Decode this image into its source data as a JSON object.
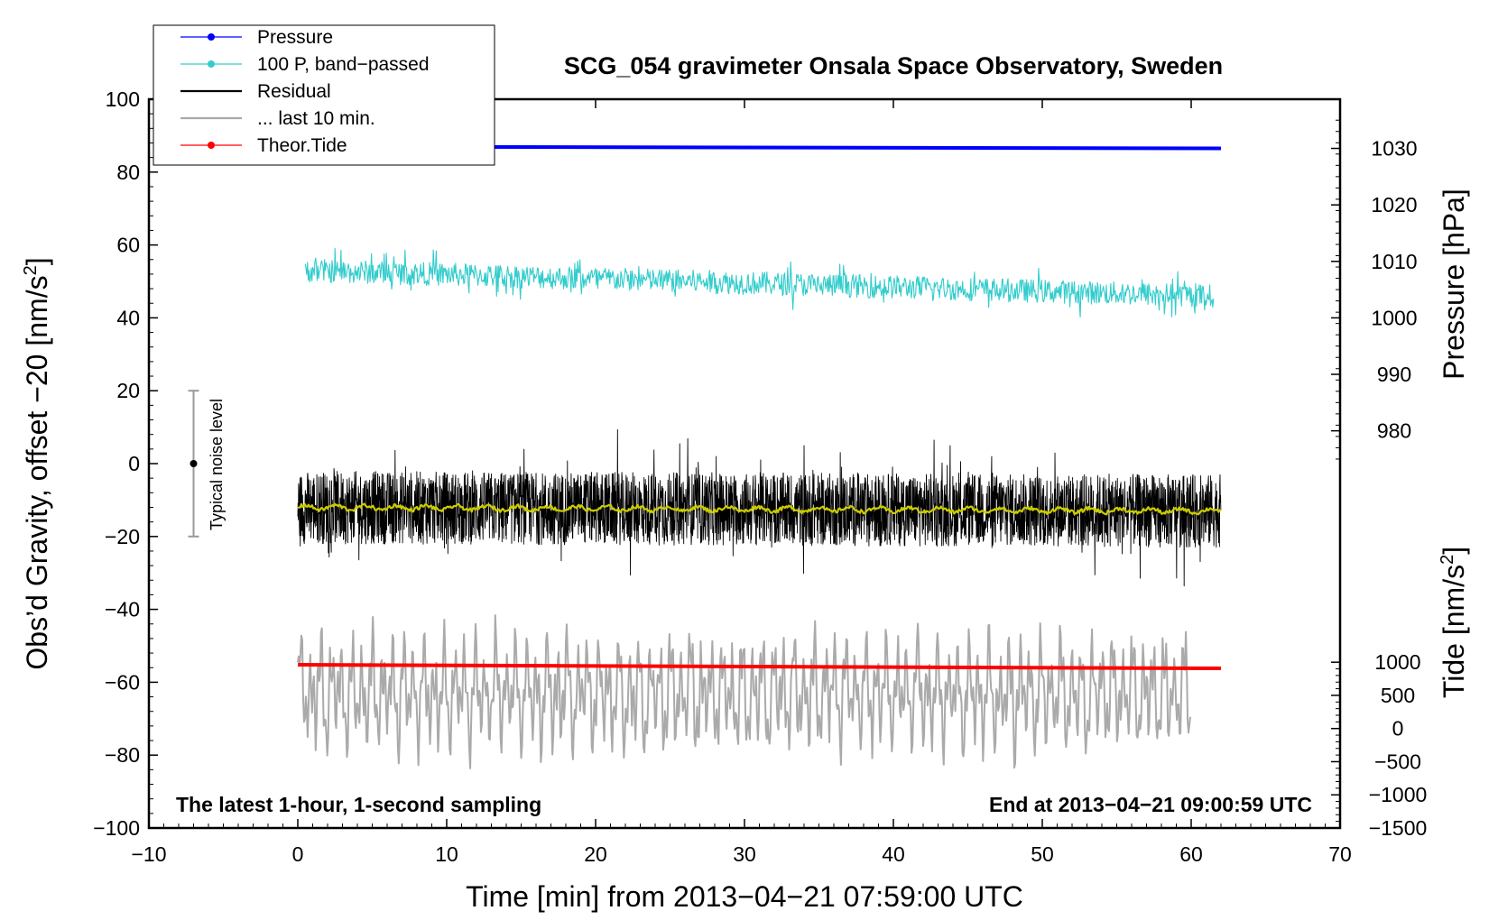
{
  "chart_data": {
    "type": "line",
    "title": "SCG_054 gravimeter Onsala Space Observatory, Sweden",
    "xlabel": "Time [min] from 2013−04−21 07:59:00 UTC",
    "ylabel_left": "Obs’d Gravity, offset −20 [nm/s",
    "ylabel_left_sup": "2",
    "ylabel_left_end": "]",
    "ylabel_pressure": "Pressure [hPa]",
    "ylabel_tide": "Tide [nm/s",
    "ylabel_tide_sup": "2",
    "ylabel_tide_end": "]",
    "xlim": [
      -10,
      70
    ],
    "ylim": [
      -100,
      100
    ],
    "x_ticks": [
      "−10",
      "0",
      "10",
      "20",
      "30",
      "40",
      "50",
      "60",
      "70"
    ],
    "y_ticks": [
      "−100",
      "−80",
      "−60",
      "−40",
      "−20",
      "0",
      "20",
      "40",
      "60",
      "80",
      "100"
    ],
    "pressure_ticks": [
      "980",
      "990",
      "1000",
      "1010",
      "1020",
      "1030"
    ],
    "tide_ticks": [
      "−1500",
      "−1000",
      "−500",
      "0",
      "500",
      "1000"
    ],
    "note_left": "The latest 1-hour, 1-second sampling",
    "note_right": "End at 2013−04−21 09:00:59 UTC",
    "noise_label": "Typical noise level",
    "noise_bar": {
      "x": -7,
      "center": 0,
      "range": [
        -20,
        20
      ]
    },
    "legend": [
      {
        "label": "Pressure",
        "color": "#0000ff",
        "marker": true
      },
      {
        "label": "100 P, band−passed",
        "color": "#33cccc",
        "marker": true
      },
      {
        "label": "Residual",
        "color": "#000000",
        "marker": false
      },
      {
        "label": "... last 10 min.",
        "color": "#aaaaaa",
        "marker": false
      },
      {
        "label": "Theor.Tide",
        "color": "#ff0000",
        "marker": true
      }
    ],
    "series": [
      {
        "name": "Pressure",
        "color": "#0000ff",
        "x": [
          0,
          62
        ],
        "y": [
          87,
          86.5
        ]
      },
      {
        "name": "100 P, band-passed",
        "color": "#33cccc",
        "x_range": [
          0.5,
          61.5
        ],
        "trend": [
          53,
          46
        ],
        "amplitude": 4
      },
      {
        "name": "Residual",
        "color": "#000000",
        "x_range": [
          0,
          62
        ],
        "trend": [
          -12,
          -13
        ],
        "amplitude": 10
      },
      {
        "name": "Residual smoothed",
        "color": "#cccc00",
        "x_range": [
          0,
          62
        ],
        "trend": [
          -12,
          -13
        ],
        "amplitude": 1
      },
      {
        "name": "... last 10 min.",
        "color": "#aaaaaa",
        "x_range": [
          0,
          60
        ],
        "trend": [
          -63,
          -63
        ],
        "amplitude": 12
      },
      {
        "name": "Theor.Tide",
        "color": "#ff0000",
        "x": [
          0,
          62
        ],
        "y": [
          -55.2,
          -56.2
        ]
      }
    ]
  }
}
